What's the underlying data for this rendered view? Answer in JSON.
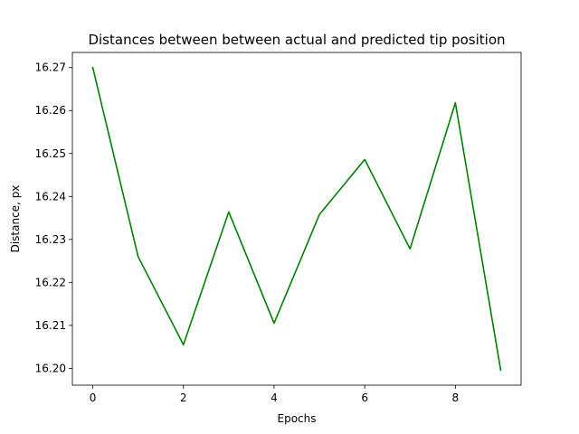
{
  "chart_data": {
    "type": "line",
    "title": "Distances between between actual and predicted tip position",
    "xlabel": "Epochs",
    "ylabel": "Distance, px",
    "x": [
      0,
      1,
      2,
      3,
      4,
      5,
      6,
      7,
      8,
      9
    ],
    "series": [
      {
        "values": [
          16.27,
          16.226,
          16.2055,
          16.2364,
          16.2105,
          16.2358,
          16.2486,
          16.2278,
          16.2618,
          16.1996
        ],
        "color": "#008000"
      }
    ],
    "xlim": [
      -0.45,
      9.45
    ],
    "ylim": [
      16.19608,
      16.27352
    ],
    "xticks": [
      0,
      2,
      4,
      6,
      8
    ],
    "xtick_labels": [
      "0",
      "2",
      "4",
      "6",
      "8"
    ],
    "yticks": [
      16.2,
      16.21,
      16.22,
      16.23,
      16.24,
      16.25,
      16.26,
      16.27
    ],
    "ytick_labels": [
      "16.20",
      "16.21",
      "16.22",
      "16.23",
      "16.24",
      "16.25",
      "16.26",
      "16.27"
    ],
    "grid": false,
    "legend": "none"
  }
}
